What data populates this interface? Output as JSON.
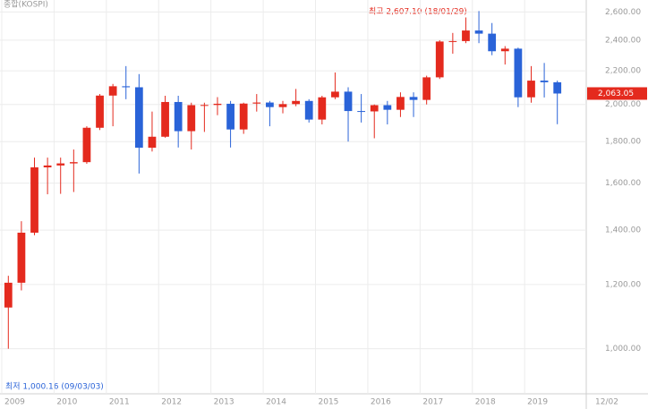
{
  "chart_data": {
    "type": "candlestick",
    "title": "종합(KOSPI)",
    "high_annotation": "최고 2,607.10 (18/01/29)",
    "low_annotation": "최저 1,000.16 (09/03/03)",
    "last_label": "2,063.05",
    "last_value": 2063.05,
    "end_label": "12/02",
    "log_scale": true,
    "grid": true,
    "up_color": "#e42a1e",
    "down_color": "#2a63d8",
    "categories": [
      "2009",
      null,
      null,
      null,
      "2010",
      null,
      null,
      null,
      "2011",
      null,
      null,
      null,
      "2012",
      null,
      null,
      null,
      "2013",
      null,
      null,
      null,
      "2014",
      null,
      null,
      null,
      "2015",
      null,
      null,
      null,
      "2016",
      null,
      null,
      null,
      "2017",
      null,
      null,
      null,
      "2018",
      null,
      null,
      null,
      "2019",
      null,
      null
    ],
    "open": [
      1124,
      1206,
      1390,
      1673,
      1682,
      1692,
      1698,
      1872,
      2051,
      2106,
      2100,
      1769,
      1825,
      2014,
      1854,
      1996,
      1997,
      2004,
      1863,
      2005,
      2011,
      1985,
      2002,
      2020,
      1916,
      2041,
      2074,
      1963,
      1961,
      1996,
      1970,
      2043,
      2026,
      2160,
      2391,
      2394,
      2467,
      2445,
      2326,
      2343,
      2041,
      2140,
      2130
    ],
    "high": [
      1230,
      1436,
      1720,
      1720,
      1720,
      1760,
      1880,
      2060,
      2120,
      2230,
      2180,
      1960,
      2050,
      2050,
      2010,
      2010,
      2042,
      2020,
      2010,
      2060,
      2020,
      2020,
      2090,
      2030,
      2050,
      2190,
      2100,
      2060,
      2000,
      2020,
      2070,
      2070,
      2170,
      2400,
      2450,
      2560,
      2607,
      2520,
      2360,
      2350,
      2230,
      2250,
      2140
    ],
    "low": [
      1000,
      1180,
      1380,
      1550,
      1552,
      1560,
      1690,
      1860,
      1880,
      2030,
      1644,
      1750,
      1820,
      1770,
      1760,
      1850,
      1940,
      1770,
      1840,
      1960,
      1880,
      1950,
      1990,
      1900,
      1890,
      2030,
      1800,
      1900,
      1817,
      1890,
      1930,
      1930,
      2000,
      2150,
      2310,
      2380,
      2380,
      2300,
      2240,
      1985,
      2010,
      2040,
      1891
    ],
    "close": [
      1206,
      1390,
      1673,
      1682,
      1692,
      1698,
      1872,
      2051,
      2106,
      2100,
      1769,
      1825,
      2014,
      1854,
      1996,
      1997,
      2004,
      1863,
      2005,
      2011,
      1985,
      2002,
      2020,
      1916,
      2041,
      2074,
      1963,
      1961,
      1996,
      1970,
      2043,
      2026,
      2160,
      2391,
      2394,
      2467,
      2445,
      2326,
      2343,
      2041,
      2140,
      2130,
      2063.05
    ],
    "ylim": [
      880,
      2690
    ],
    "yticks": [
      {
        "value": 1000,
        "label": "1,000.00"
      },
      {
        "value": 1200,
        "label": "1,200.00"
      },
      {
        "value": 1400,
        "label": "1,400.00"
      },
      {
        "value": 1600,
        "label": "1,600.00"
      },
      {
        "value": 1800,
        "label": "1,800.00"
      },
      {
        "value": 2000,
        "label": "2,000.00"
      },
      {
        "value": 2200,
        "label": "2,200.00"
      },
      {
        "value": 2400,
        "label": "2,400.00"
      },
      {
        "value": 2600,
        "label": "2,600.00"
      }
    ]
  }
}
